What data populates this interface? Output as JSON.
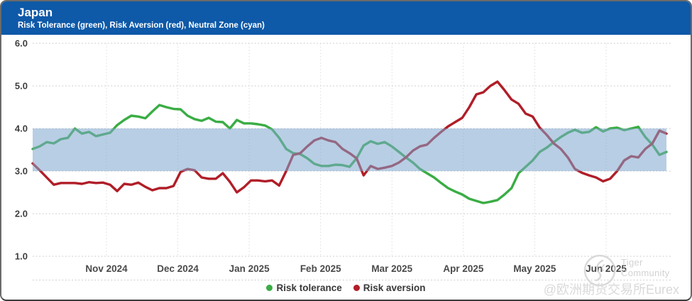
{
  "header": {
    "title": "Japan",
    "subtitle": "Risk Tolerance (green), Risk Aversion (red), Neutral Zone (cyan)"
  },
  "colors": {
    "header_bg": "#0e59a8",
    "tolerance_green": "#3aad44",
    "aversion_red": "#b01e28",
    "neutral_band": "#7da5cd",
    "grid_gray": "#c9c9c9"
  },
  "chart_data": {
    "type": "line",
    "title": "Japan",
    "subtitle": "Risk Tolerance (green), Risk Aversion (red), Neutral Zone (cyan)",
    "ylim": [
      1.0,
      6.0
    ],
    "y_ticks": [
      "6.0",
      "5.0",
      "4.0",
      "3.0",
      "2.0",
      "1.0"
    ],
    "x_tick_labels": [
      "Nov 2024",
      "Dec 2024",
      "Jan 2025",
      "Feb 2025",
      "Mar 2025",
      "Apr 2025",
      "May 2025",
      "Jun 2025"
    ],
    "x_domain_note": "evenly spaced samples, mid-Oct 2024 to late-Jun 2025",
    "grid": true,
    "legend_position": "bottom",
    "neutral_zone": {
      "min": 3.0,
      "max": 4.0,
      "label": "Neutral Zone (cyan)"
    },
    "series": [
      {
        "name": "Risk tolerance",
        "color": "#3aad44",
        "values": [
          3.52,
          3.58,
          3.68,
          3.65,
          3.75,
          3.78,
          4.0,
          3.88,
          3.92,
          3.82,
          3.86,
          3.9,
          4.08,
          4.2,
          4.3,
          4.28,
          4.24,
          4.4,
          4.55,
          4.5,
          4.46,
          4.45,
          4.3,
          4.22,
          4.18,
          4.25,
          4.16,
          4.15,
          4.0,
          4.2,
          4.12,
          4.12,
          4.1,
          4.07,
          3.98,
          3.78,
          3.52,
          3.42,
          3.4,
          3.3,
          3.17,
          3.12,
          3.12,
          3.15,
          3.14,
          3.1,
          3.3,
          3.6,
          3.7,
          3.64,
          3.68,
          3.58,
          3.45,
          3.32,
          3.2,
          3.05,
          2.95,
          2.85,
          2.72,
          2.6,
          2.52,
          2.45,
          2.35,
          2.3,
          2.25,
          2.28,
          2.32,
          2.45,
          2.6,
          2.95,
          3.1,
          3.25,
          3.45,
          3.55,
          3.68,
          3.8,
          3.9,
          3.97,
          3.9,
          3.92,
          4.03,
          3.93,
          4.0,
          4.02,
          3.96,
          4.0,
          4.04,
          3.8,
          3.62,
          3.38,
          3.45
        ]
      },
      {
        "name": "Risk aversion",
        "color": "#b01e28",
        "values": [
          3.18,
          3.02,
          2.85,
          2.68,
          2.72,
          2.72,
          2.72,
          2.7,
          2.74,
          2.72,
          2.73,
          2.68,
          2.53,
          2.7,
          2.68,
          2.73,
          2.63,
          2.55,
          2.6,
          2.6,
          2.65,
          2.98,
          3.05,
          3.02,
          2.85,
          2.82,
          2.82,
          2.95,
          2.75,
          2.5,
          2.62,
          2.78,
          2.78,
          2.76,
          2.78,
          2.66,
          3.0,
          3.38,
          3.42,
          3.58,
          3.72,
          3.78,
          3.72,
          3.68,
          3.52,
          3.42,
          3.3,
          2.9,
          3.12,
          3.05,
          3.08,
          3.12,
          3.2,
          3.32,
          3.48,
          3.58,
          3.62,
          3.78,
          3.92,
          4.05,
          4.15,
          4.25,
          4.5,
          4.8,
          4.85,
          5.0,
          5.1,
          4.9,
          4.68,
          4.58,
          4.35,
          4.28,
          4.02,
          3.85,
          3.65,
          3.52,
          3.32,
          3.05,
          2.96,
          2.9,
          2.85,
          2.76,
          2.82,
          3.0,
          3.25,
          3.35,
          3.32,
          3.52,
          3.65,
          3.95,
          3.88
        ]
      }
    ]
  },
  "watermark": {
    "brand": "Tiger Community",
    "handle": "@欧洲期货交易所Eurex",
    "logo": "tiger-logo"
  }
}
